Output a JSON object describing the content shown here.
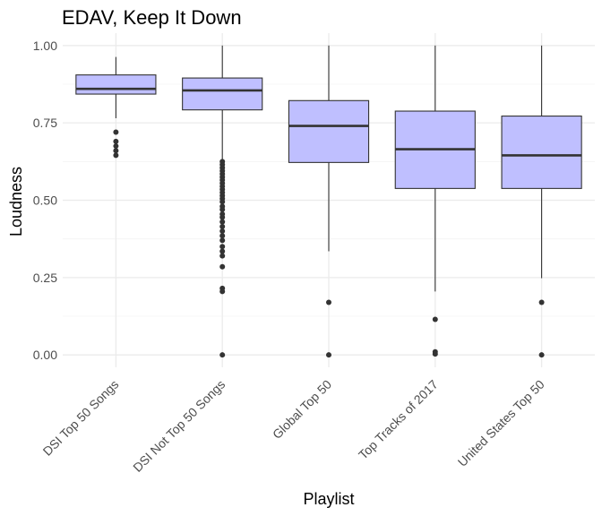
{
  "chart_data": {
    "type": "boxplot",
    "title": "EDAV, Keep It Down",
    "xlabel": "Playlist",
    "ylabel": "Loudness",
    "ylim": [
      -0.04,
      1.04
    ],
    "yticks": [
      0.0,
      0.25,
      0.5,
      0.75,
      1.0
    ],
    "ytick_labels": [
      "0.00",
      "0.25",
      "0.50",
      "0.75",
      "1.00"
    ],
    "grid": true,
    "box_fill": "#bfbfff",
    "box_stroke": "#333333",
    "categories": [
      "DSI Top 50 Songs",
      "DSI Not Top 50 Songs",
      "Global Top 50",
      "Top Tracks of 2017",
      "United States Top 50"
    ],
    "boxes": [
      {
        "category": "DSI Top 50 Songs",
        "whisker_low": 0.765,
        "q1": 0.843,
        "median": 0.86,
        "q3": 0.905,
        "whisker_high": 0.963,
        "outliers": [
          0.72,
          0.69,
          0.675,
          0.66,
          0.645
        ]
      },
      {
        "category": "DSI Not Top 50 Songs",
        "whisker_low": 0.63,
        "q1": 0.792,
        "median": 0.855,
        "q3": 0.895,
        "whisker_high": 1.0,
        "outliers": [
          0.625,
          0.615,
          0.605,
          0.595,
          0.585,
          0.575,
          0.565,
          0.555,
          0.545,
          0.535,
          0.525,
          0.515,
          0.505,
          0.495,
          0.48,
          0.47,
          0.455,
          0.445,
          0.43,
          0.415,
          0.4,
          0.385,
          0.37,
          0.35,
          0.335,
          0.32,
          0.285,
          0.215,
          0.205,
          0.0
        ]
      },
      {
        "category": "Global Top 50",
        "whisker_low": 0.335,
        "q1": 0.622,
        "median": 0.74,
        "q3": 0.822,
        "whisker_high": 1.0,
        "outliers": [
          0.17,
          0.0
        ]
      },
      {
        "category": "Top Tracks of 2017",
        "whisker_low": 0.205,
        "q1": 0.538,
        "median": 0.665,
        "q3": 0.788,
        "whisker_high": 1.0,
        "outliers": [
          0.115,
          0.01,
          0.003
        ]
      },
      {
        "category": "United States Top 50",
        "whisker_low": 0.248,
        "q1": 0.538,
        "median": 0.645,
        "q3": 0.772,
        "whisker_high": 1.0,
        "outliers": [
          0.17,
          0.0
        ]
      }
    ]
  }
}
